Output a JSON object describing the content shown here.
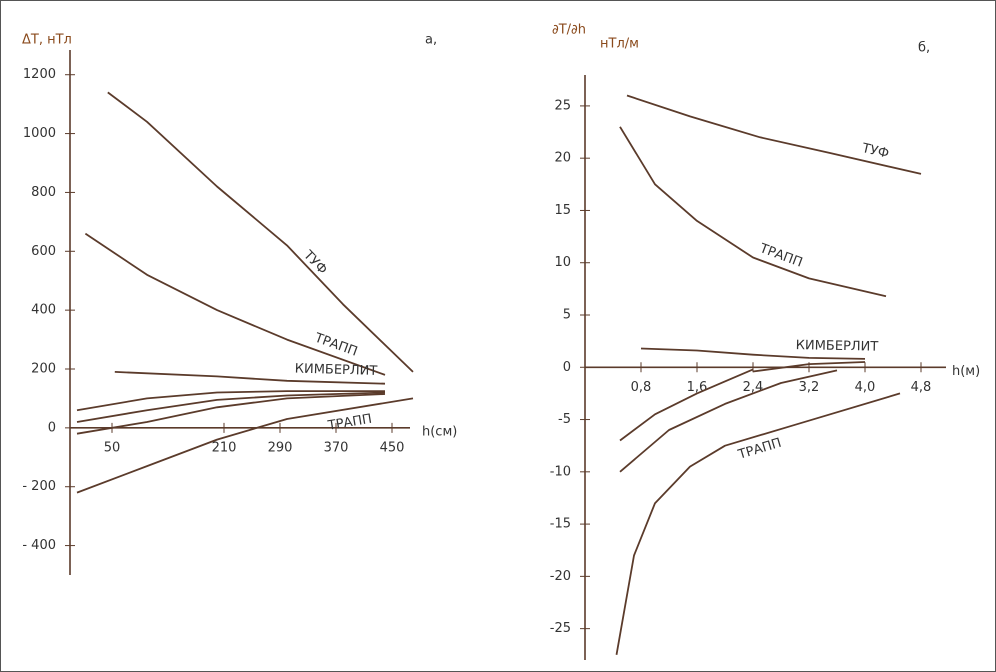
{
  "chart_data": [
    {
      "type": "line",
      "panel_label": "а,",
      "ylabel": "ΔT, нТл",
      "xlabel": "h(см)",
      "line_color": "#5b3b2b",
      "text_color": "#8a4a1c",
      "xlim": [
        -10,
        490
      ],
      "ylim": [
        -500,
        1250
      ],
      "xticks": [
        50,
        210,
        290,
        370,
        450
      ],
      "yticks": [
        1200,
        1000,
        800,
        600,
        400,
        200,
        0,
        {
          "value": -200,
          "label": "- 200"
        },
        {
          "value": -400,
          "label": "- 400"
        }
      ],
      "series": [
        {
          "name": "ТУФ",
          "x": [
            44,
            100,
            200,
            300,
            380,
            480
          ],
          "values": [
            1140,
            1040,
            820,
            620,
            420,
            190
          ]
        },
        {
          "name": "ТРАПП",
          "x": [
            12,
            100,
            200,
            300,
            440
          ],
          "values": [
            660,
            520,
            400,
            300,
            180
          ]
        },
        {
          "name": "КИМБЕРЛИТ",
          "x": [
            54,
            200,
            300,
            440
          ],
          "values": [
            190,
            175,
            160,
            150
          ]
        },
        {
          "x": [
            0,
            100,
            200,
            300,
            440
          ],
          "values": [
            60,
            100,
            120,
            125,
            125
          ]
        },
        {
          "x": [
            0,
            100,
            200,
            300,
            440
          ],
          "values": [
            20,
            60,
            95,
            110,
            120
          ]
        },
        {
          "x": [
            0,
            100,
            200,
            300,
            440
          ],
          "values": [
            -20,
            20,
            70,
            100,
            115
          ]
        },
        {
          "name": "ТРАПП",
          "x": [
            0,
            100,
            200,
            300,
            480
          ],
          "values": [
            -220,
            -130,
            -40,
            30,
            100
          ]
        }
      ]
    },
    {
      "type": "line",
      "panel_label": "б,",
      "ylabel": "∂T/∂h",
      "yunit": "нТл/м",
      "xlabel": "h(м)",
      "line_color": "#5b3b2b",
      "text_color": "#8a4a1c",
      "xlim": [
        0,
        5.3
      ],
      "ylim": [
        -28,
        27
      ],
      "xticks": [
        {
          "value": 0.8,
          "label": "0,8"
        },
        {
          "value": 1.6,
          "label": "1,6"
        },
        {
          "value": 2.4,
          "label": "2,4"
        },
        {
          "value": 3.2,
          "label": "3,2"
        },
        {
          "value": 4.0,
          "label": "4,0"
        },
        {
          "value": 4.8,
          "label": "4,8"
        }
      ],
      "yticks": [
        25,
        20,
        15,
        10,
        5,
        0,
        -5,
        -10,
        -15,
        -20,
        -25
      ],
      "series": [
        {
          "name": "ТУФ",
          "x": [
            0.6,
            1.5,
            2.5,
            3.5,
            4.8
          ],
          "values": [
            26,
            24,
            22,
            20.5,
            18.5
          ]
        },
        {
          "name": "ТРАПП",
          "x": [
            0.5,
            1.0,
            1.6,
            2.4,
            3.2,
            4.3
          ],
          "values": [
            23,
            17.5,
            14,
            10.5,
            8.5,
            6.8
          ]
        },
        {
          "name": "КИМБЕРЛИТ",
          "x": [
            0.8,
            1.6,
            2.4,
            3.2,
            4.0
          ],
          "values": [
            1.8,
            1.6,
            1.2,
            0.9,
            0.8
          ]
        },
        {
          "x": [
            2.4,
            3.2,
            4.0
          ],
          "values": [
            -0.4,
            0.3,
            0.5
          ]
        },
        {
          "x": [
            0.5,
            1.0,
            1.6,
            2.4
          ],
          "values": [
            -7,
            -4.5,
            -2.5,
            -0.2
          ]
        },
        {
          "x": [
            0.5,
            1.2,
            2.0,
            2.8,
            3.6
          ],
          "values": [
            -10,
            -6,
            -3.5,
            -1.5,
            -0.3
          ]
        },
        {
          "name": "ТРАПП",
          "x": [
            0.45,
            0.7,
            1.0,
            1.5,
            2.0,
            3.0,
            4.5
          ],
          "values": [
            -27.5,
            -18,
            -13,
            -9.5,
            -7.5,
            -5.5,
            -2.5
          ]
        }
      ]
    }
  ]
}
